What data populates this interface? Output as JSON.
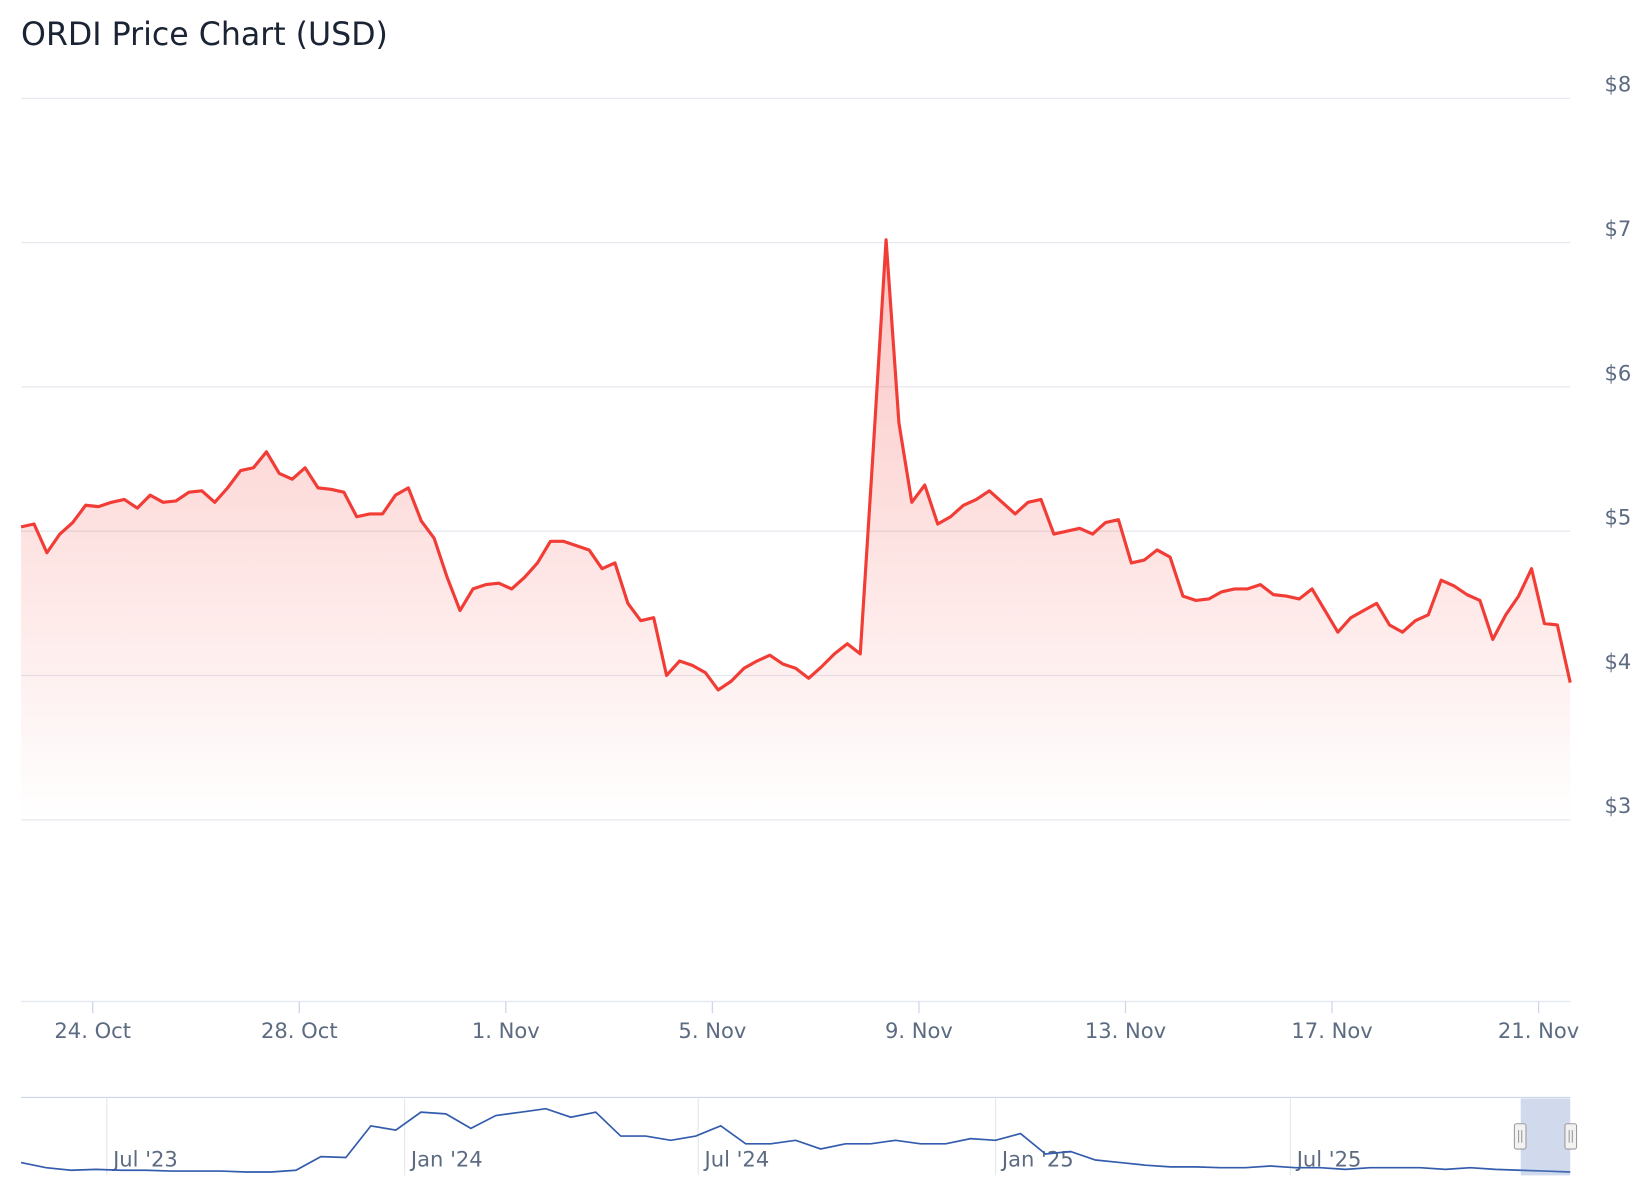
{
  "chart_data": [
    {
      "type": "line",
      "title": "ORDI Price Chart (USD)",
      "color": "#f23c36",
      "values": [
        5.03,
        5.05,
        4.85,
        4.98,
        5.06,
        5.18,
        5.17,
        5.2,
        5.22,
        5.16,
        5.25,
        5.2,
        5.21,
        5.27,
        5.28,
        5.2,
        5.3,
        5.42,
        5.44,
        5.55,
        5.4,
        5.36,
        5.44,
        5.3,
        5.29,
        5.27,
        5.1,
        5.12,
        5.12,
        5.25,
        5.3,
        5.07,
        4.95,
        4.68,
        4.45,
        4.6,
        4.63,
        4.64,
        4.6,
        4.68,
        4.78,
        4.93,
        4.93,
        4.9,
        4.87,
        4.74,
        4.78,
        4.5,
        4.38,
        4.4,
        4.0,
        4.1,
        4.07,
        4.02,
        3.9,
        3.96,
        4.05,
        4.1,
        4.14,
        4.08,
        4.05,
        3.98,
        4.06,
        4.15,
        4.22,
        4.15,
        5.55,
        7.02,
        5.75,
        5.2,
        5.32,
        5.05,
        5.1,
        5.18,
        5.22,
        5.28,
        5.2,
        5.12,
        5.2,
        5.22,
        4.98,
        5.0,
        5.02,
        4.98,
        5.06,
        5.08,
        4.78,
        4.8,
        4.87,
        4.82,
        4.55,
        4.52,
        4.53,
        4.58,
        4.6,
        4.6,
        4.63,
        4.56,
        4.55,
        4.53,
        4.6,
        4.45,
        4.3,
        4.4,
        4.45,
        4.5,
        4.35,
        4.3,
        4.38,
        4.42,
        4.66,
        4.62,
        4.56,
        4.52,
        4.25,
        4.42,
        4.55,
        4.74,
        4.36,
        4.35,
        3.95
      ],
      "xlim": [
        0,
        120
      ],
      "xticks": [
        {
          "value": 5.55,
          "label": "24. Oct"
        },
        {
          "value": 21.55,
          "label": "28. Oct"
        },
        {
          "value": 37.55,
          "label": "1. Nov"
        },
        {
          "value": 53.55,
          "label": "5. Nov"
        },
        {
          "value": 69.55,
          "label": "9. Nov"
        },
        {
          "value": 85.55,
          "label": "13. Nov"
        },
        {
          "value": 101.55,
          "label": "17. Nov"
        },
        {
          "value": 117.55,
          "label": "21. Nov"
        }
      ],
      "ylim": [
        1.74,
        8
      ],
      "yticks": [
        {
          "value": 3,
          "label": "$3"
        },
        {
          "value": 4,
          "label": "$4"
        },
        {
          "value": 5,
          "label": "$5"
        },
        {
          "value": 6,
          "label": "$6"
        },
        {
          "value": 7,
          "label": "$7"
        },
        {
          "value": 8,
          "label": "$8"
        }
      ],
      "grid": true
    },
    {
      "type": "line",
      "color": "#335cad",
      "values": [
        15,
        9,
        6,
        7,
        6,
        6,
        5,
        5,
        5,
        4,
        4,
        6,
        22,
        21,
        58,
        53,
        74,
        72,
        55,
        70,
        74,
        78,
        68,
        74,
        46,
        46,
        41,
        46,
        58,
        37,
        37,
        41,
        31,
        37,
        37,
        41,
        37,
        37,
        43,
        41,
        49,
        25,
        28,
        18,
        15,
        12,
        10,
        10,
        9,
        9,
        11,
        9,
        9,
        7,
        9,
        9,
        9,
        7,
        9,
        7,
        6,
        5,
        4
      ],
      "xlim": [
        0,
        62
      ],
      "xticks": [
        {
          "value": 3.43,
          "label": "Jul '23"
        },
        {
          "value": 15.35,
          "label": "Jan '24"
        },
        {
          "value": 27.1,
          "label": "Jul '24"
        },
        {
          "value": 39.0,
          "label": "Jan '25"
        },
        {
          "value": 50.8,
          "label": "Jul '25"
        }
      ],
      "ylim": [
        0,
        90
      ]
    }
  ]
}
